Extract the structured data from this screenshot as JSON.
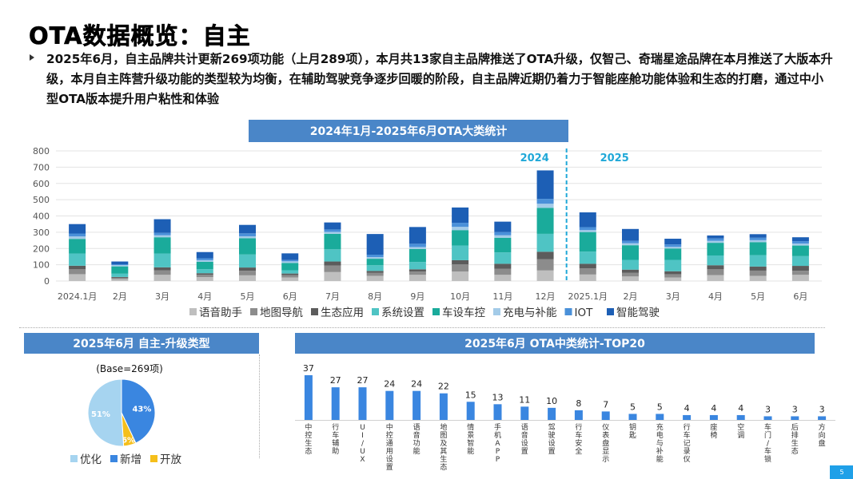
{
  "page": {
    "title": "OTA数据概览：自主",
    "summary": "2025年6月，自主品牌共计更新269项功能（上月289项），本月共13家自主品牌推送了OTA升级，仅智己、奇瑞星途品牌在本月推送了大版本升级，本月自主阵营升级功能的类型较为均衡，在辅助驾驶竞争逐步回暖的阶段，自主品牌近期仍着力于智能座舱功能体验和生态的打磨，通过中小型OTA版本提升用户粘性和体验",
    "page_number": "5"
  },
  "chart_data": [
    {
      "type": "bar",
      "stacked": true,
      "title": "2024年1月-2025年6月OTA大类统计",
      "categories": [
        "2024.1月",
        "2月",
        "3月",
        "4月",
        "5月",
        "6月",
        "7月",
        "8月",
        "9月",
        "10月",
        "11月",
        "12月",
        "2025.1月",
        "2月",
        "3月",
        "4月",
        "5月",
        "6月"
      ],
      "year_labels": [
        "2024",
        "2025"
      ],
      "ylim": [
        0,
        800
      ],
      "yticks": [
        0,
        100,
        200,
        300,
        400,
        500,
        600,
        700,
        800
      ],
      "series": [
        {
          "name": "语音助手",
          "color": "#bfbfbf",
          "values": [
            42,
            12,
            38,
            24,
            35,
            22,
            55,
            32,
            38,
            58,
            38,
            65,
            40,
            28,
            22,
            36,
            32,
            38
          ]
        },
        {
          "name": "地图导航",
          "color": "#8c8c8c",
          "values": [
            30,
            8,
            28,
            14,
            28,
            14,
            40,
            18,
            20,
            45,
            38,
            70,
            38,
            22,
            20,
            36,
            32,
            25
          ]
        },
        {
          "name": "生态应用",
          "color": "#5c5c5c",
          "values": [
            22,
            5,
            18,
            10,
            20,
            10,
            25,
            12,
            14,
            25,
            30,
            45,
            28,
            20,
            18,
            25,
            25,
            30
          ]
        },
        {
          "name": "系统设置",
          "color": "#4fc4c4",
          "values": [
            75,
            20,
            85,
            25,
            80,
            20,
            75,
            35,
            45,
            90,
            70,
            110,
            75,
            60,
            70,
            60,
            70,
            60
          ]
        },
        {
          "name": "车设车控",
          "color": "#1aab9b",
          "values": [
            90,
            45,
            100,
            45,
            100,
            45,
            95,
            40,
            80,
            95,
            90,
            160,
            120,
            90,
            70,
            78,
            80,
            65
          ]
        },
        {
          "name": "充电与补能",
          "color": "#a3cbe8",
          "values": [
            15,
            8,
            12,
            10,
            12,
            10,
            12,
            10,
            12,
            20,
            15,
            25,
            12,
            12,
            10,
            12,
            12,
            12
          ]
        },
        {
          "name": "IOT",
          "color": "#4a90d9",
          "values": [
            18,
            5,
            15,
            12,
            18,
            8,
            15,
            15,
            20,
            25,
            20,
            30,
            18,
            15,
            15,
            15,
            15,
            15
          ]
        },
        {
          "name": "智能驾驶",
          "color": "#1d5fb5",
          "values": [
            58,
            17,
            84,
            38,
            52,
            41,
            43,
            127,
            103,
            94,
            64,
            175,
            91,
            73,
            35,
            18,
            22,
            24
          ]
        }
      ]
    },
    {
      "type": "pie",
      "title": "2025年6月 自主-升级类型",
      "base_label": "(Base=269项)",
      "slices": [
        {
          "name": "优化",
          "value": 51,
          "label": "51%",
          "color": "#a6d4f0"
        },
        {
          "name": "新增",
          "value": 43,
          "label": "43%",
          "color": "#3a86e0"
        },
        {
          "name": "开放",
          "value": 6,
          "label": "6%",
          "color": "#f5bf1b"
        }
      ]
    },
    {
      "type": "bar",
      "title": "2025年6月 OTA中类统计-TOP20",
      "color": "#3a86e0",
      "categories": [
        "中控生态",
        "行车辅助",
        "UI/UX",
        "中控通用设置",
        "语音功能",
        "地图及其生态",
        "情景智能",
        "手机APP",
        "语音设置",
        "驾驶设置",
        "行车安全",
        "仪表盘显示",
        "钥匙",
        "充电与补能",
        "行车记录仪",
        "座椅",
        "空调",
        "车门/车锁",
        "后排生态",
        "方向盘"
      ],
      "values": [
        37,
        27,
        27,
        24,
        24,
        22,
        15,
        13,
        11,
        10,
        8,
        7,
        5,
        5,
        4,
        4,
        4,
        3,
        3,
        3
      ]
    }
  ]
}
